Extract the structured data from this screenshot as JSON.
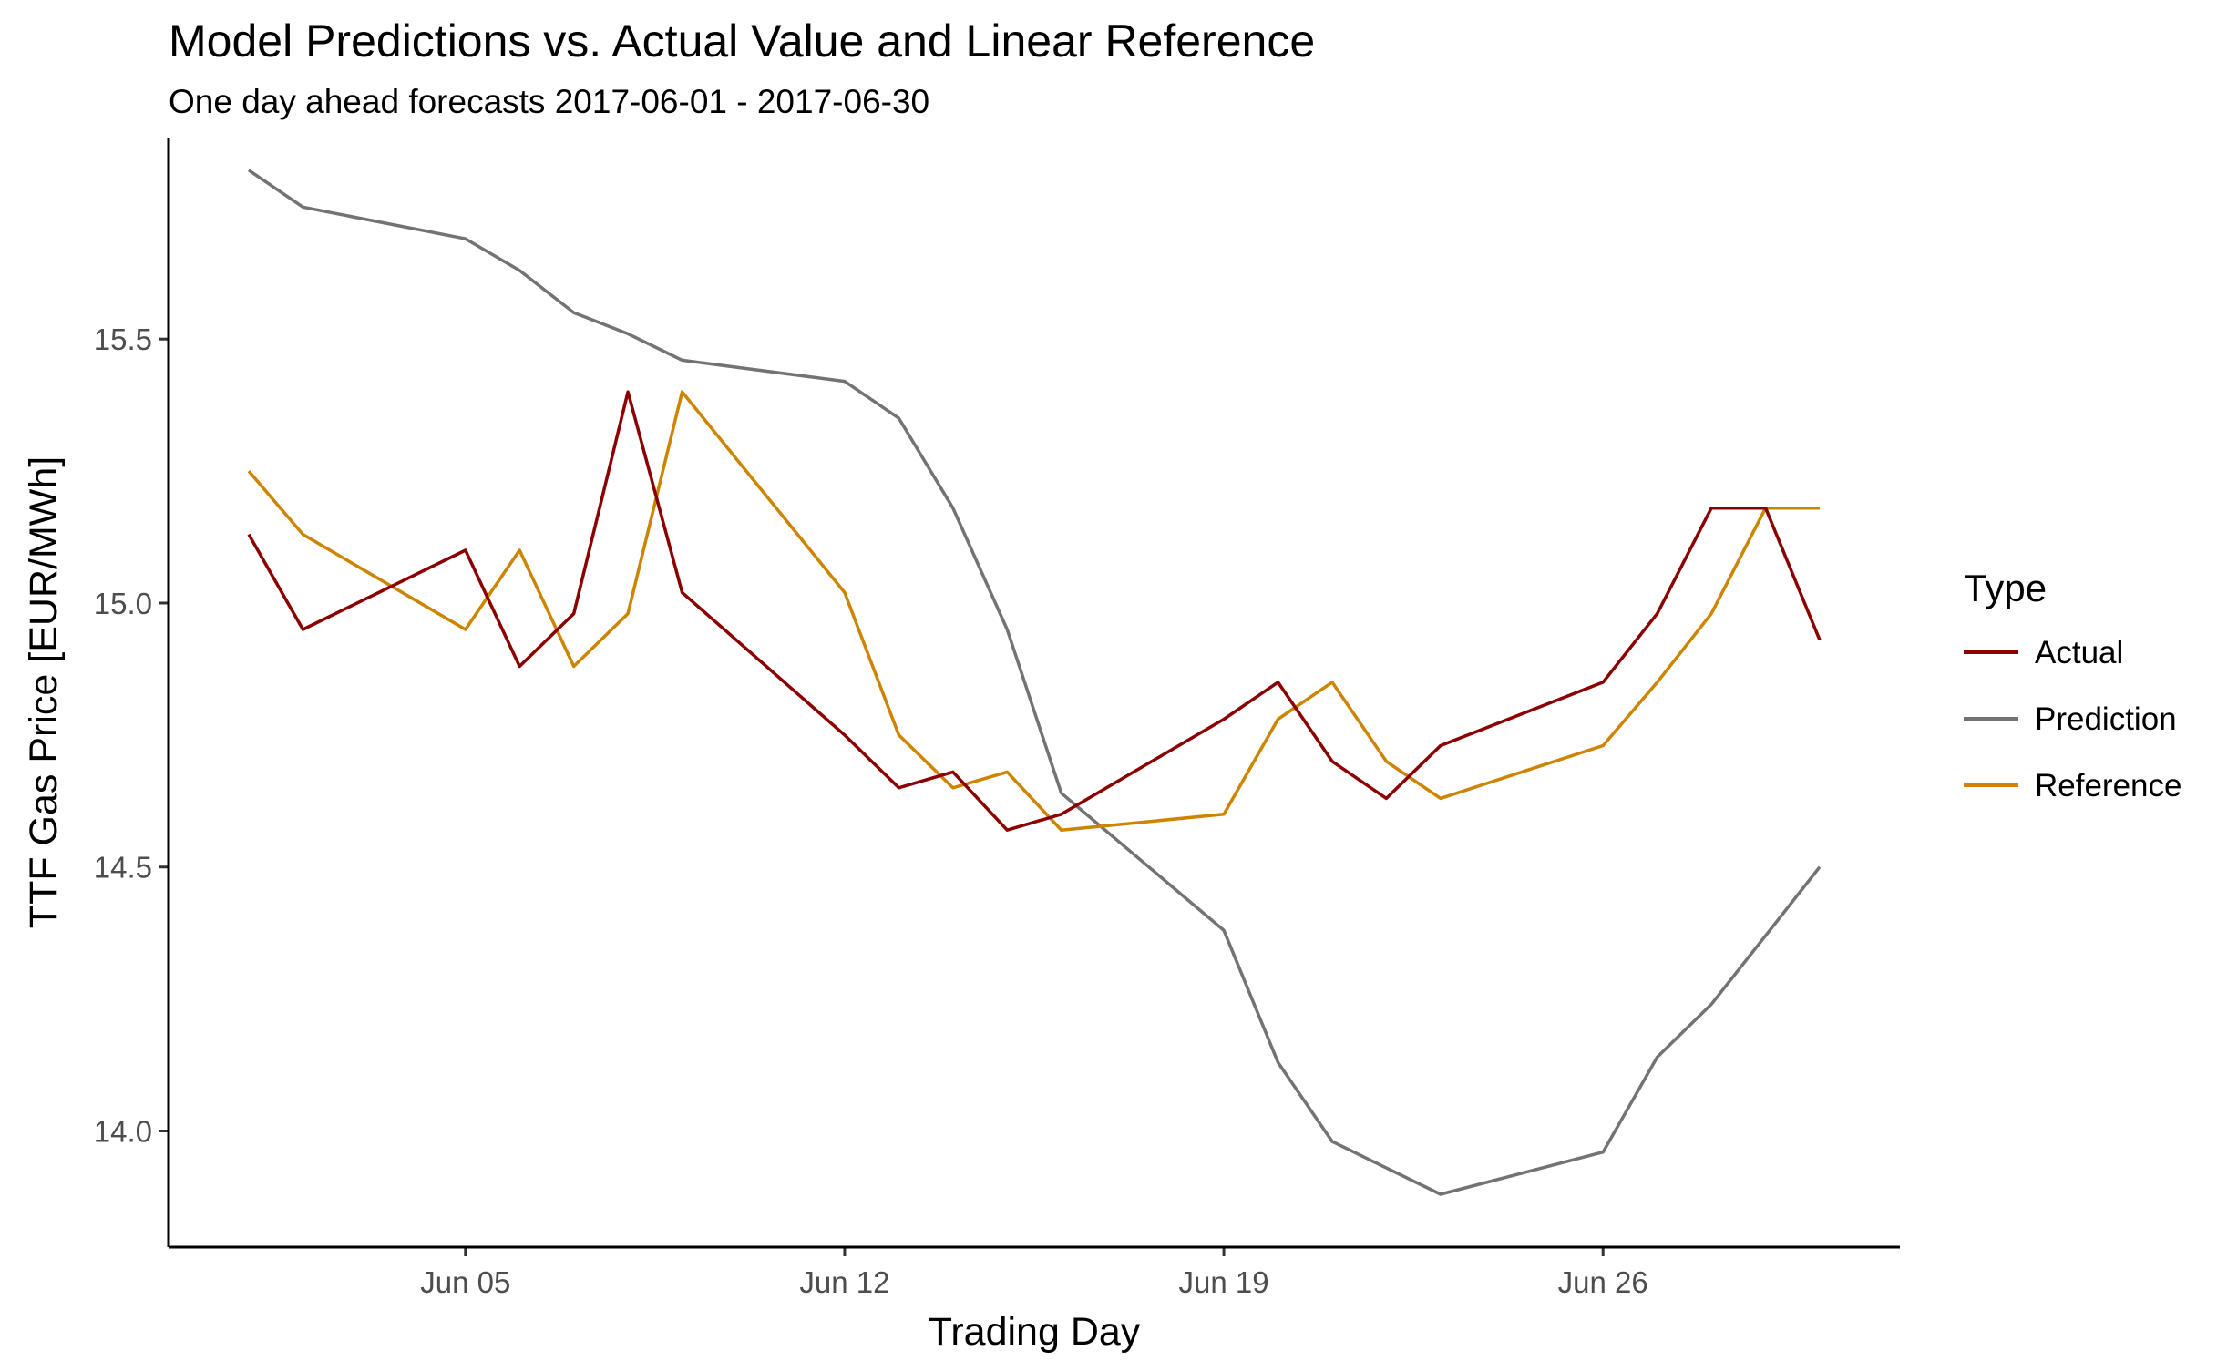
{
  "chart_data": {
    "type": "line",
    "title": "Model Predictions vs. Actual Value and Linear Reference",
    "subtitle": "One day ahead forecasts 2017-06-01 - 2017-06-30",
    "xlabel": "Trading Day",
    "ylabel": "TTF Gas Price [EUR/MWh]",
    "x_ticks": [
      {
        "date": "2017-06-05",
        "label": "Jun 05"
      },
      {
        "date": "2017-06-12",
        "label": "Jun 12"
      },
      {
        "date": "2017-06-19",
        "label": "Jun 19"
      },
      {
        "date": "2017-06-26",
        "label": "Jun 26"
      }
    ],
    "y_ticks": [
      14.0,
      14.5,
      15.0,
      15.5
    ],
    "xlim": [
      "2017-06-01",
      "2017-06-30"
    ],
    "ylim": [
      13.78,
      15.88
    ],
    "grid": false,
    "legend": {
      "title": "Type",
      "position": "right"
    },
    "x": [
      "2017-06-01",
      "2017-06-02",
      "2017-06-05",
      "2017-06-06",
      "2017-06-07",
      "2017-06-08",
      "2017-06-09",
      "2017-06-12",
      "2017-06-13",
      "2017-06-14",
      "2017-06-15",
      "2017-06-16",
      "2017-06-19",
      "2017-06-20",
      "2017-06-21",
      "2017-06-22",
      "2017-06-23",
      "2017-06-26",
      "2017-06-27",
      "2017-06-28",
      "2017-06-29",
      "2017-06-30"
    ],
    "series": [
      {
        "name": "Actual",
        "color": "#8b0000",
        "values": [
          15.13,
          14.95,
          15.1,
          14.88,
          14.98,
          15.4,
          15.02,
          14.75,
          14.65,
          14.68,
          14.57,
          14.6,
          14.78,
          14.85,
          14.7,
          14.63,
          14.73,
          14.85,
          14.98,
          15.18,
          15.18,
          14.93
        ]
      },
      {
        "name": "Prediction",
        "color": "#737373",
        "values": [
          15.82,
          15.75,
          15.69,
          15.63,
          15.55,
          15.51,
          15.46,
          15.42,
          15.35,
          15.18,
          14.95,
          14.64,
          14.38,
          14.13,
          13.98,
          13.93,
          13.88,
          13.96,
          14.14,
          14.24,
          14.37,
          14.5
        ]
      },
      {
        "name": "Reference",
        "color": "#cd8500",
        "values": [
          15.25,
          15.13,
          14.95,
          15.1,
          14.88,
          14.98,
          15.4,
          15.02,
          14.75,
          14.65,
          14.68,
          14.57,
          14.6,
          14.78,
          14.85,
          14.7,
          14.63,
          14.73,
          14.85,
          14.98,
          15.18,
          15.18
        ]
      }
    ]
  }
}
